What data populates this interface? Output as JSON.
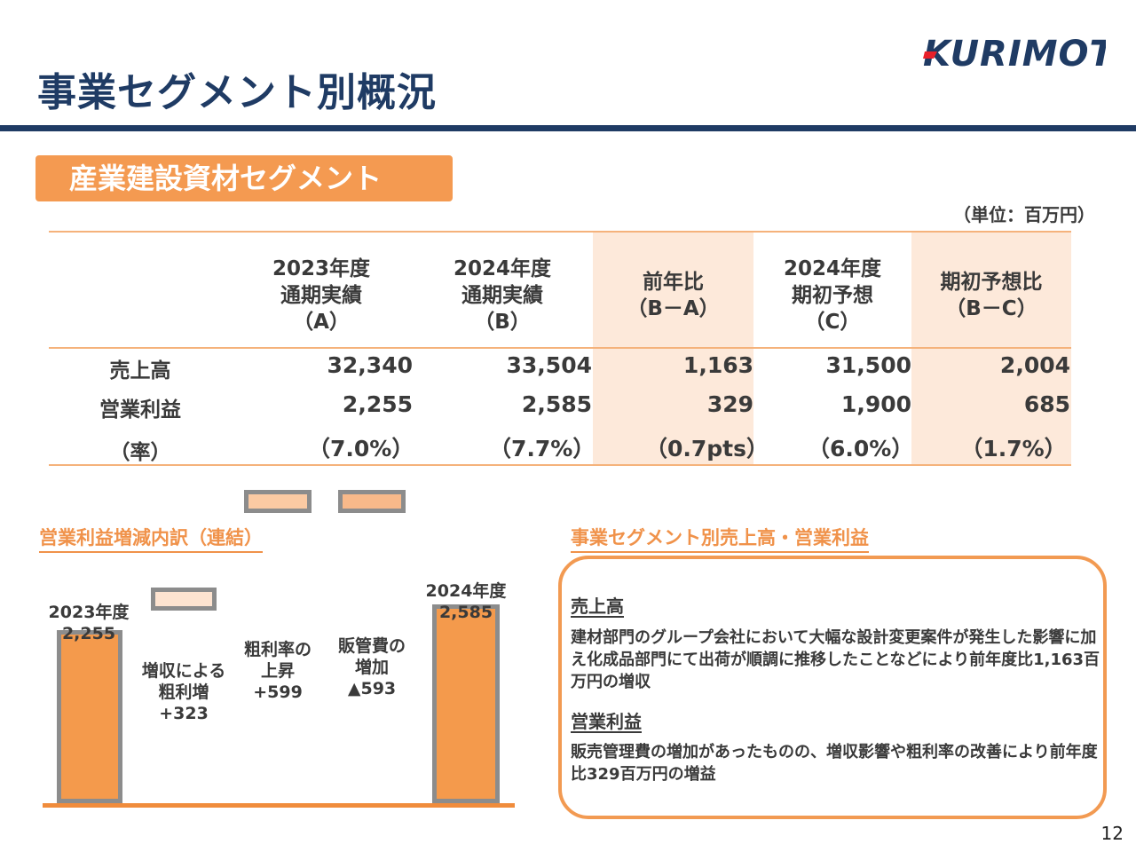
{
  "header": {
    "title": "事業セグメント別概況",
    "logo_text": "KURIMOTO",
    "logo_color_text": "#1f3b64",
    "logo_color_accent": "#e8202a"
  },
  "segment": {
    "name": "産業建設資材セグメント"
  },
  "unit": "（単位：百万円）",
  "table": {
    "columns": [
      {
        "lines": [
          "2023年度",
          "通期実績",
          "（A）"
        ]
      },
      {
        "lines": [
          "2024年度",
          "通期実績",
          "（B）"
        ]
      },
      {
        "lines": [
          "前年比",
          "（B－A）"
        ]
      },
      {
        "lines": [
          "2024年度",
          "期初予想",
          "（C）"
        ]
      },
      {
        "lines": [
          "期初予想比",
          "（B－C）"
        ]
      }
    ],
    "rows": [
      {
        "label": "売上高",
        "values": [
          "32,340",
          "33,504",
          "1,163",
          "31,500",
          "2,004"
        ]
      },
      {
        "label": "営業利益",
        "values": [
          "2,255",
          "2,585",
          "329",
          "1,900",
          "685"
        ]
      },
      {
        "label": "（率）",
        "values": [
          "（7.0%）",
          "（7.7%）",
          "（0.7pts）",
          "（6.0%）",
          "（1.7%）"
        ]
      }
    ],
    "highlight_color": "#fde9da"
  },
  "waterfall": {
    "section_label": "営業利益増減内訳（連結）",
    "start": {
      "label_year": "2023年度",
      "label_value": "2,255",
      "value": 2255
    },
    "end": {
      "label_year": "2024年度",
      "label_value": "2,585",
      "value": 2585
    },
    "steps": [
      {
        "lines": [
          "増収による",
          "粗利増",
          "+323"
        ],
        "value": 323
      },
      {
        "lines": [
          "粗利率の",
          "上昇",
          "+599"
        ],
        "value": 599
      },
      {
        "lines": [
          "販管費の",
          "増加",
          "▲593"
        ],
        "value": -593
      }
    ],
    "colors": {
      "total": "#f49a4c",
      "step1": "#fde3d0",
      "step2": "#fbcaa3",
      "step3": "#f8b98a",
      "outline": "#8c8c8c"
    }
  },
  "summary": {
    "section_label": "事業セグメント別売上高・営業利益",
    "sales": {
      "heading": "売上高",
      "text": "建材部門のグループ会社において大幅な設計変更案件が発生した影響に加え化成品部門にて出荷が順調に推移したことなどにより前年度比1,163百万円の増収"
    },
    "profit": {
      "heading": "営業利益",
      "text": "販売管理費の増加があったものの、増収影響や粗利率の改善により前年度比329百万円の増益"
    }
  },
  "page_number": "12",
  "colors": {
    "navy": "#1f3b64",
    "orange": "#f49a51"
  }
}
